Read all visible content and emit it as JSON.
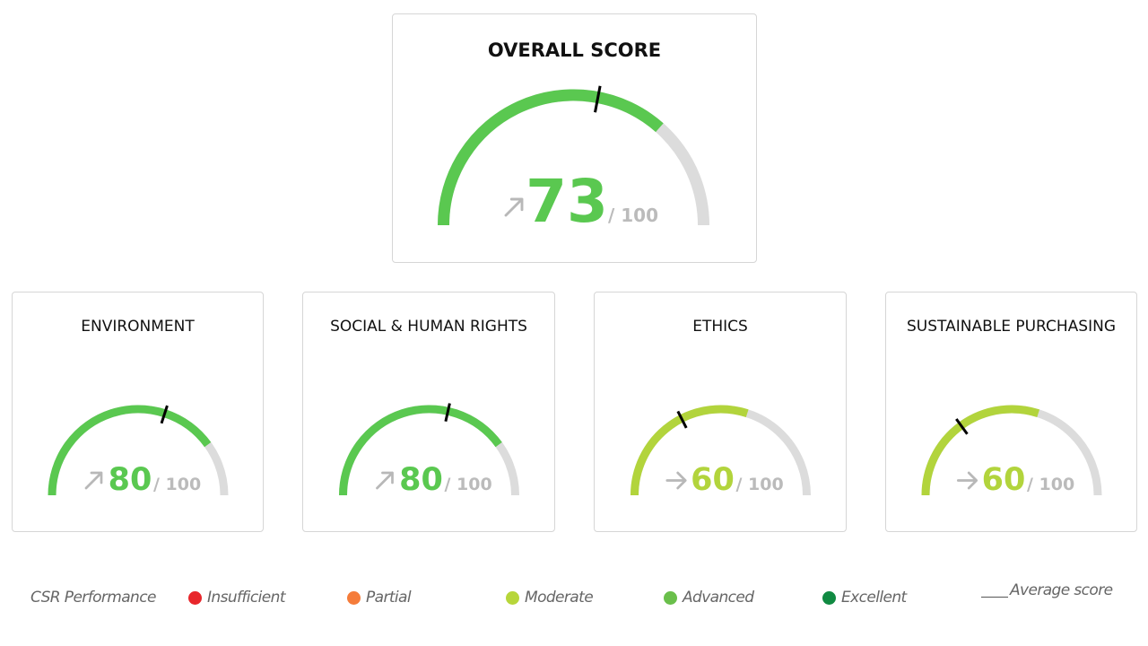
{
  "overall": {
    "title": "OVERALL SCORE",
    "score": 73,
    "avg": 56,
    "max_label": "/ 100",
    "trend": "up",
    "color": "#5ac850"
  },
  "categories": [
    {
      "title": "ENVIRONMENT",
      "score": 80,
      "avg": 60,
      "max_label": "/ 100",
      "trend": "up",
      "color": "#5ac850"
    },
    {
      "title": "SOCIAL & HUMAN RIGHTS",
      "score": 80,
      "avg": 57,
      "max_label": "/ 100",
      "trend": "up",
      "color": "#5ac850"
    },
    {
      "title": "ETHICS",
      "score": 60,
      "avg": 35,
      "max_label": "/ 100",
      "trend": "flat",
      "color": "#b2d43c"
    },
    {
      "title": "SUSTAINABLE  PURCHASING",
      "score": 60,
      "avg": 30,
      "max_label": "/ 100",
      "trend": "flat",
      "color": "#b2d43c"
    }
  ],
  "track_color": "#dcdcdc",
  "arrow_color": "#b8b8b8",
  "max_text_color": "#bbbbbb",
  "legend": {
    "title": "CSR Performance",
    "items": [
      {
        "label": "Insufficient",
        "color": "#e8262b"
      },
      {
        "label": "Partial",
        "color": "#f57c3a"
      },
      {
        "label": "Moderate",
        "color": "#b7d63a"
      },
      {
        "label": "Advanced",
        "color": "#6abf4b"
      },
      {
        "label": "Excellent",
        "color": "#108a42"
      }
    ],
    "average_label": "Average score"
  }
}
